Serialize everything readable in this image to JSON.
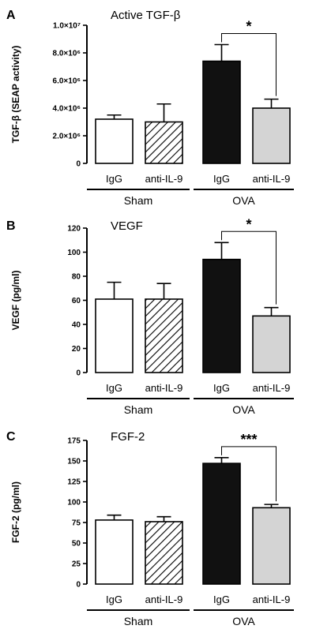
{
  "chart_data": [
    {
      "type": "bar",
      "panel_label": "A",
      "title": "Active TGF-β",
      "ylabel": "TGF-β (SEAP activity)",
      "categories": [
        "IgG",
        "anti-IL-9",
        "IgG",
        "anti-IL-9"
      ],
      "groups": [
        {
          "label": "Sham",
          "categories": [
            0,
            1
          ]
        },
        {
          "label": "OVA",
          "categories": [
            2,
            3
          ]
        }
      ],
      "series": [
        {
          "values": [
            3200000,
            3000000,
            7400000,
            4000000
          ],
          "errors": [
            300000,
            1300000,
            1200000,
            650000
          ]
        }
      ],
      "bar_styles": [
        "white",
        "hatched",
        "black",
        "lightgray"
      ],
      "ylim": [
        0,
        10000000
      ],
      "yticks": [
        0,
        2000000,
        4000000,
        6000000,
        8000000,
        10000000
      ],
      "ytick_labels": [
        "0",
        "2.0×10⁶",
        "4.0×10⁶",
        "6.0×10⁶",
        "8.0×10⁶",
        "1.0×10⁷"
      ],
      "significance": {
        "from": 2,
        "to": 3,
        "label": "*"
      },
      "grid": false,
      "legend": "none"
    },
    {
      "type": "bar",
      "panel_label": "B",
      "title": "VEGF",
      "ylabel": "VEGF (pg/ml)",
      "categories": [
        "IgG",
        "anti-IL-9",
        "IgG",
        "anti-IL-9"
      ],
      "groups": [
        {
          "label": "Sham",
          "categories": [
            0,
            1
          ]
        },
        {
          "label": "OVA",
          "categories": [
            2,
            3
          ]
        }
      ],
      "series": [
        {
          "values": [
            61,
            61,
            94,
            47
          ],
          "errors": [
            14,
            13,
            14,
            7
          ]
        }
      ],
      "bar_styles": [
        "white",
        "hatched",
        "black",
        "lightgray"
      ],
      "ylim": [
        0,
        120
      ],
      "yticks": [
        0,
        20,
        40,
        60,
        80,
        100,
        120
      ],
      "ytick_labels": [
        "0",
        "20",
        "40",
        "60",
        "80",
        "100",
        "120"
      ],
      "significance": {
        "from": 2,
        "to": 3,
        "label": "*"
      },
      "grid": false,
      "legend": "none"
    },
    {
      "type": "bar",
      "panel_label": "C",
      "title": "FGF-2",
      "ylabel": "FGF-2 (pg/ml)",
      "categories": [
        "IgG",
        "anti-IL-9",
        "IgG",
        "anti-IL-9"
      ],
      "groups": [
        {
          "label": "Sham",
          "categories": [
            0,
            1
          ]
        },
        {
          "label": "OVA",
          "categories": [
            2,
            3
          ]
        }
      ],
      "series": [
        {
          "values": [
            78,
            76,
            147,
            93
          ],
          "errors": [
            6,
            6,
            7,
            4
          ]
        }
      ],
      "bar_styles": [
        "white",
        "hatched",
        "black",
        "lightgray"
      ],
      "ylim": [
        0,
        175
      ],
      "yticks": [
        0,
        25,
        50,
        75,
        100,
        125,
        150,
        175
      ],
      "ytick_labels": [
        "0",
        "25",
        "50",
        "75",
        "100",
        "125",
        "150",
        "175"
      ],
      "significance": {
        "from": 2,
        "to": 3,
        "label": "***"
      },
      "grid": false,
      "legend": "none"
    }
  ],
  "colors": {
    "white_bar": "#ffffff",
    "black_bar": "#111111",
    "gray_bar": "#d4d4d4",
    "stroke": "#000000"
  }
}
